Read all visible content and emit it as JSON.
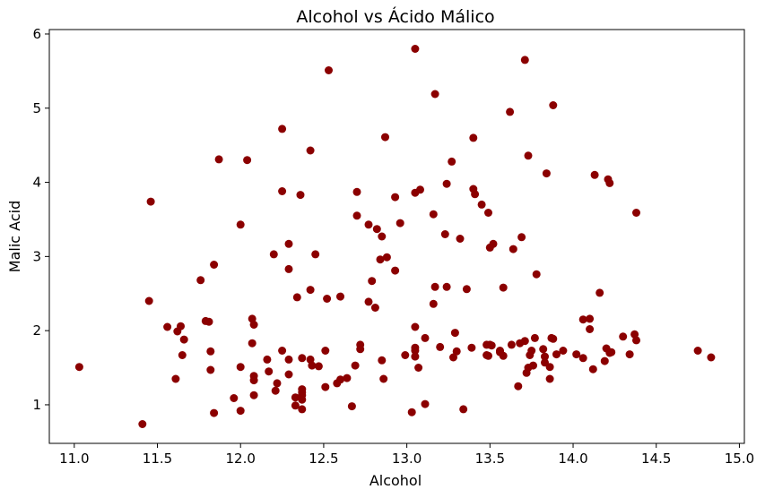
{
  "chart_data": {
    "type": "scatter",
    "title": "Alcohol vs Ácido Málico",
    "xlabel": "Alcohol",
    "ylabel": "Malic Acid",
    "xlim": [
      10.85,
      15.03
    ],
    "ylim": [
      0.48,
      6.06
    ],
    "xticks": [
      "11.0",
      "11.5",
      "12.0",
      "12.5",
      "13.0",
      "13.5",
      "14.0",
      "14.5",
      "15.0"
    ],
    "yticks": [
      "1",
      "2",
      "3",
      "4",
      "5",
      "6"
    ],
    "grid": false,
    "legend": "none",
    "marker_color": "#8b0000",
    "points": [
      [
        11.03,
        1.51
      ],
      [
        11.41,
        0.74
      ],
      [
        11.45,
        2.4
      ],
      [
        11.46,
        3.74
      ],
      [
        11.56,
        2.05
      ],
      [
        11.61,
        1.35
      ],
      [
        11.62,
        1.99
      ],
      [
        11.64,
        2.06
      ],
      [
        11.65,
        1.67
      ],
      [
        11.66,
        1.88
      ],
      [
        11.76,
        2.68
      ],
      [
        11.79,
        2.13
      ],
      [
        11.81,
        2.12
      ],
      [
        11.82,
        1.72
      ],
      [
        11.82,
        1.47
      ],
      [
        11.84,
        0.89
      ],
      [
        11.84,
        2.89
      ],
      [
        11.87,
        4.31
      ],
      [
        11.96,
        1.09
      ],
      [
        12.0,
        3.43
      ],
      [
        12.0,
        0.92
      ],
      [
        12.0,
        1.51
      ],
      [
        12.04,
        4.3
      ],
      [
        12.07,
        2.16
      ],
      [
        12.07,
        1.83
      ],
      [
        12.08,
        1.13
      ],
      [
        12.08,
        1.33
      ],
      [
        12.08,
        1.39
      ],
      [
        12.08,
        2.08
      ],
      [
        12.16,
        1.61
      ],
      [
        12.17,
        1.45
      ],
      [
        12.2,
        3.03
      ],
      [
        12.21,
        1.19
      ],
      [
        12.22,
        1.29
      ],
      [
        12.25,
        1.73
      ],
      [
        12.25,
        3.88
      ],
      [
        12.25,
        4.72
      ],
      [
        12.29,
        1.41
      ],
      [
        12.29,
        1.61
      ],
      [
        12.29,
        2.83
      ],
      [
        12.29,
        3.17
      ],
      [
        12.33,
        0.99
      ],
      [
        12.33,
        1.1
      ],
      [
        12.34,
        2.45
      ],
      [
        12.36,
        3.83
      ],
      [
        12.37,
        0.94
      ],
      [
        12.37,
        1.07
      ],
      [
        12.37,
        1.13
      ],
      [
        12.37,
        1.17
      ],
      [
        12.37,
        1.21
      ],
      [
        12.37,
        1.63
      ],
      [
        12.42,
        1.61
      ],
      [
        12.42,
        2.55
      ],
      [
        12.42,
        4.43
      ],
      [
        12.43,
        1.53
      ],
      [
        12.45,
        3.03
      ],
      [
        12.47,
        1.52
      ],
      [
        12.51,
        1.24
      ],
      [
        12.51,
        1.73
      ],
      [
        12.52,
        2.43
      ],
      [
        12.53,
        5.51
      ],
      [
        12.58,
        1.29
      ],
      [
        12.6,
        1.34
      ],
      [
        12.6,
        2.46
      ],
      [
        12.64,
        1.36
      ],
      [
        12.67,
        0.98
      ],
      [
        12.69,
        1.53
      ],
      [
        12.7,
        3.55
      ],
      [
        12.7,
        3.87
      ],
      [
        12.72,
        1.75
      ],
      [
        12.72,
        1.81
      ],
      [
        12.77,
        2.39
      ],
      [
        12.77,
        3.43
      ],
      [
        12.79,
        2.67
      ],
      [
        12.81,
        2.31
      ],
      [
        12.82,
        3.37
      ],
      [
        12.84,
        2.96
      ],
      [
        12.85,
        1.6
      ],
      [
        12.85,
        3.27
      ],
      [
        12.86,
        1.35
      ],
      [
        12.87,
        4.61
      ],
      [
        12.88,
        2.99
      ],
      [
        12.93,
        2.81
      ],
      [
        12.93,
        3.8
      ],
      [
        12.96,
        3.45
      ],
      [
        12.99,
        1.67
      ],
      [
        13.03,
        0.9
      ],
      [
        13.05,
        1.65
      ],
      [
        13.05,
        1.73
      ],
      [
        13.05,
        1.77
      ],
      [
        13.05,
        2.05
      ],
      [
        13.05,
        3.86
      ],
      [
        13.05,
        5.8
      ],
      [
        13.07,
        1.5
      ],
      [
        13.08,
        3.9
      ],
      [
        13.11,
        1.01
      ],
      [
        13.11,
        1.9
      ],
      [
        13.16,
        2.36
      ],
      [
        13.16,
        3.57
      ],
      [
        13.17,
        2.59
      ],
      [
        13.17,
        5.19
      ],
      [
        13.2,
        1.78
      ],
      [
        13.23,
        3.3
      ],
      [
        13.24,
        2.59
      ],
      [
        13.24,
        3.98
      ],
      [
        13.27,
        4.28
      ],
      [
        13.28,
        1.64
      ],
      [
        13.29,
        1.97
      ],
      [
        13.3,
        1.72
      ],
      [
        13.32,
        3.24
      ],
      [
        13.34,
        0.94
      ],
      [
        13.36,
        2.56
      ],
      [
        13.39,
        1.77
      ],
      [
        13.4,
        3.91
      ],
      [
        13.4,
        4.6
      ],
      [
        13.41,
        3.84
      ],
      [
        13.45,
        3.7
      ],
      [
        13.48,
        1.67
      ],
      [
        13.48,
        1.81
      ],
      [
        13.49,
        1.66
      ],
      [
        13.49,
        3.59
      ],
      [
        13.5,
        1.81
      ],
      [
        13.5,
        3.12
      ],
      [
        13.51,
        1.8
      ],
      [
        13.52,
        3.17
      ],
      [
        13.56,
        1.71
      ],
      [
        13.56,
        1.73
      ],
      [
        13.58,
        1.66
      ],
      [
        13.58,
        2.58
      ],
      [
        13.62,
        4.95
      ],
      [
        13.63,
        1.81
      ],
      [
        13.64,
        3.1
      ],
      [
        13.67,
        1.25
      ],
      [
        13.68,
        1.83
      ],
      [
        13.69,
        3.26
      ],
      [
        13.71,
        1.86
      ],
      [
        13.71,
        5.65
      ],
      [
        13.72,
        1.43
      ],
      [
        13.73,
        1.5
      ],
      [
        13.73,
        4.36
      ],
      [
        13.74,
        1.67
      ],
      [
        13.75,
        1.73
      ],
      [
        13.76,
        1.53
      ],
      [
        13.77,
        1.9
      ],
      [
        13.78,
        2.76
      ],
      [
        13.82,
        1.75
      ],
      [
        13.83,
        1.57
      ],
      [
        13.83,
        1.65
      ],
      [
        13.84,
        4.12
      ],
      [
        13.86,
        1.35
      ],
      [
        13.86,
        1.51
      ],
      [
        13.87,
        1.9
      ],
      [
        13.88,
        1.89
      ],
      [
        13.88,
        5.04
      ],
      [
        13.9,
        1.68
      ],
      [
        13.94,
        1.73
      ],
      [
        14.02,
        1.68
      ],
      [
        14.06,
        1.63
      ],
      [
        14.06,
        2.15
      ],
      [
        14.1,
        2.02
      ],
      [
        14.1,
        2.16
      ],
      [
        14.12,
        1.48
      ],
      [
        14.13,
        4.1
      ],
      [
        14.16,
        2.51
      ],
      [
        14.19,
        1.59
      ],
      [
        14.2,
        1.76
      ],
      [
        14.21,
        4.04
      ],
      [
        14.22,
        1.7
      ],
      [
        14.22,
        3.99
      ],
      [
        14.23,
        1.71
      ],
      [
        14.3,
        1.92
      ],
      [
        14.34,
        1.68
      ],
      [
        14.37,
        1.95
      ],
      [
        14.38,
        1.87
      ],
      [
        14.38,
        3.59
      ],
      [
        14.75,
        1.73
      ],
      [
        14.83,
        1.64
      ]
    ]
  }
}
